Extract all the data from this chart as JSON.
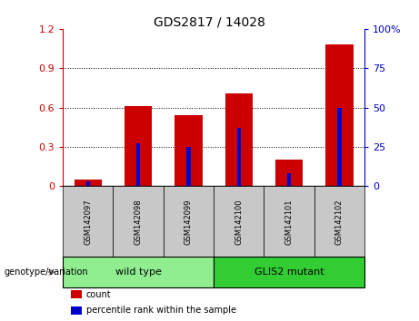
{
  "title": "GDS2817 / 14028",
  "samples": [
    "GSM142097",
    "GSM142098",
    "GSM142099",
    "GSM142100",
    "GSM142101",
    "GSM142102"
  ],
  "count_values": [
    0.05,
    0.61,
    0.54,
    0.71,
    0.2,
    1.08
  ],
  "percentile_values": [
    3.0,
    27.0,
    25.0,
    37.0,
    8.0,
    50.0
  ],
  "groups": [
    {
      "label": "wild type",
      "indices": [
        0,
        1,
        2
      ],
      "color": "#90EE90"
    },
    {
      "label": "GLIS2 mutant",
      "indices": [
        3,
        4,
        5
      ],
      "color": "#32CD32"
    }
  ],
  "left_ylim": [
    0,
    1.2
  ],
  "right_ylim": [
    0,
    100
  ],
  "left_yticks": [
    0,
    0.3,
    0.6,
    0.9,
    1.2
  ],
  "right_yticks": [
    0,
    25,
    50,
    75,
    100
  ],
  "left_yticklabels": [
    "0",
    "0.3",
    "0.6",
    "0.9",
    "1.2"
  ],
  "right_yticklabels": [
    "0",
    "25",
    "50",
    "75",
    "100%"
  ],
  "bar_color_red": "#CC0000",
  "bar_color_blue": "#0000CC",
  "bar_width": 0.55,
  "blue_bar_width": 0.08,
  "genotype_label": "genotype/variation",
  "legend_count": "count",
  "legend_percentile": "percentile rank within the sample",
  "tick_bg_color": "#C8C8C8",
  "plot_bg_color": "#FFFFFF",
  "left_axis_color": "#CC0000",
  "right_axis_color": "#0000CC",
  "grid_yticks": [
    0.3,
    0.6,
    0.9
  ]
}
